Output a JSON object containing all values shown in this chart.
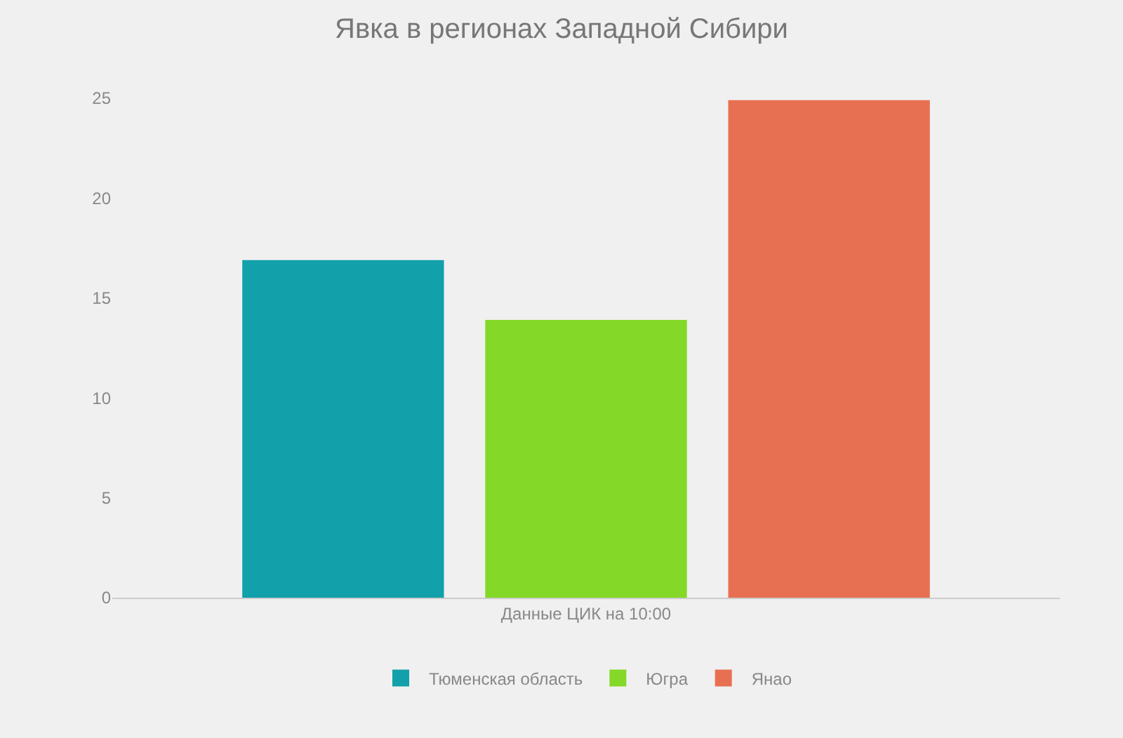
{
  "chart_data": {
    "type": "bar",
    "title": "Явка в регионах Западной Сибири",
    "categories": [
      "Данные ЦИК на 10:00"
    ],
    "series": [
      {
        "name": "Тюменская область",
        "color": "#12a0aa",
        "values": [
          16.9
        ]
      },
      {
        "name": "Югра",
        "color": "#84d827",
        "values": [
          13.9
        ]
      },
      {
        "name": "Янао",
        "color": "#e87052",
        "values": [
          24.9
        ]
      }
    ],
    "ylim": [
      0,
      25
    ],
    "yticks": [
      0,
      5,
      10,
      15,
      20,
      25
    ],
    "grid": false,
    "legend": "bottom"
  }
}
